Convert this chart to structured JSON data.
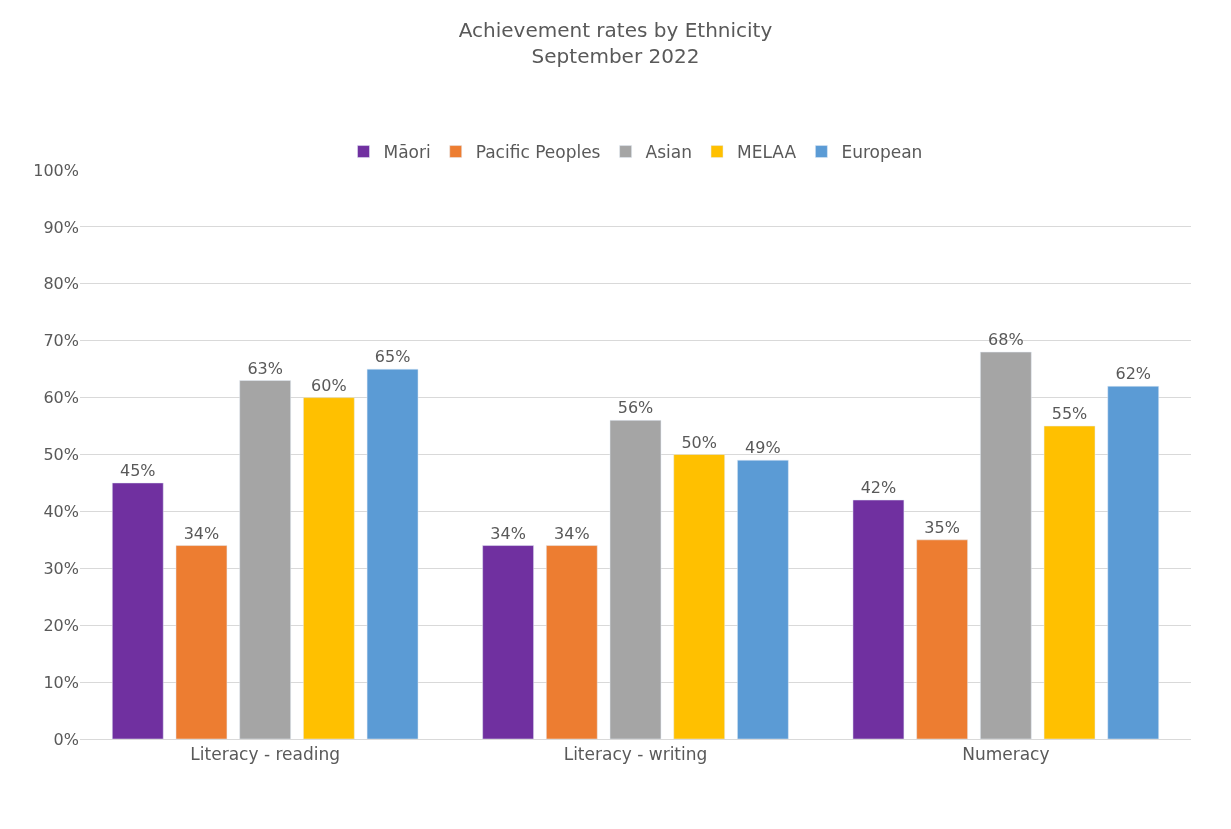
{
  "chart_data": {
    "type": "bar",
    "title": "Achievement rates by Ethnicity\nSeptember 2022",
    "categories": [
      "Literacy - reading",
      "Literacy - writing",
      "Numeracy"
    ],
    "series": [
      {
        "name": "Māori",
        "color": "#7030a0",
        "values": [
          45,
          34,
          42
        ],
        "value_labels": [
          "45%",
          "34%",
          "42%"
        ]
      },
      {
        "name": "Pacific Peoples",
        "color": "#ed7d31",
        "values": [
          34,
          34,
          35
        ],
        "value_labels": [
          "34%",
          "34%",
          "35%"
        ]
      },
      {
        "name": "Asian",
        "color": "#a5a5a5",
        "values": [
          63,
          56,
          68
        ],
        "value_labels": [
          "63%",
          "56%",
          "68%"
        ]
      },
      {
        "name": "MELAA",
        "color": "#ffc000",
        "values": [
          60,
          50,
          55
        ],
        "value_labels": [
          "60%",
          "50%",
          "55%"
        ]
      },
      {
        "name": "European",
        "color": "#5b9bd5",
        "values": [
          65,
          49,
          62
        ],
        "value_labels": [
          "65%",
          "49%",
          "62%"
        ]
      }
    ],
    "ylim": [
      0,
      100
    ],
    "yticks": [
      {
        "value": 0,
        "label": "0%"
      },
      {
        "value": 10,
        "label": "10%"
      },
      {
        "value": 20,
        "label": "20%"
      },
      {
        "value": 30,
        "label": "30%"
      },
      {
        "value": 40,
        "label": "40%"
      },
      {
        "value": 50,
        "label": "50%"
      },
      {
        "value": 60,
        "label": "60%"
      },
      {
        "value": 70,
        "label": "70%"
      },
      {
        "value": 80,
        "label": "80%"
      },
      {
        "value": 90,
        "label": "90%"
      },
      {
        "value": 100,
        "label": "100%"
      }
    ],
    "grid": "y",
    "legend": "top"
  }
}
